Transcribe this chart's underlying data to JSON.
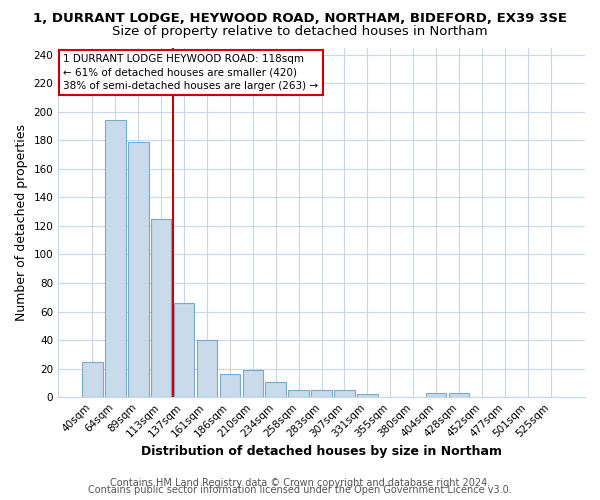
{
  "title": "1, DURRANT LODGE, HEYWOOD ROAD, NORTHAM, BIDEFORD, EX39 3SE",
  "subtitle": "Size of property relative to detached houses in Northam",
  "xlabel": "Distribution of detached houses by size in Northam",
  "ylabel": "Number of detached properties",
  "bar_labels": [
    "40sqm",
    "64sqm",
    "89sqm",
    "113sqm",
    "137sqm",
    "161sqm",
    "186sqm",
    "210sqm",
    "234sqm",
    "258sqm",
    "283sqm",
    "307sqm",
    "331sqm",
    "355sqm",
    "380sqm",
    "404sqm",
    "428sqm",
    "452sqm",
    "477sqm",
    "501sqm",
    "525sqm"
  ],
  "bar_values": [
    25,
    194,
    179,
    125,
    66,
    40,
    16,
    19,
    11,
    5,
    5,
    5,
    2,
    0,
    0,
    3,
    3,
    0,
    0,
    0,
    0
  ],
  "bar_color": "#c9daea",
  "bar_edge_color": "#7aaac8",
  "vline_x": 3.5,
  "vline_color": "#cc0000",
  "annotation_text": "1 DURRANT LODGE HEYWOOD ROAD: 118sqm\n← 61% of detached houses are smaller (420)\n38% of semi-detached houses are larger (263) →",
  "annotation_box_color": "#ffffff",
  "annotation_box_edge": "#cc0000",
  "ylim": [
    0,
    245
  ],
  "yticks": [
    0,
    20,
    40,
    60,
    80,
    100,
    120,
    140,
    160,
    180,
    200,
    220,
    240
  ],
  "footer1": "Contains HM Land Registry data © Crown copyright and database right 2024.",
  "footer2": "Contains public sector information licensed under the Open Government Licence v3.0.",
  "bg_color": "#ffffff",
  "plot_bg_color": "#ffffff",
  "grid_color": "#c8d8e8",
  "title_fontsize": 9.5,
  "subtitle_fontsize": 9.5,
  "tick_fontsize": 7.5,
  "label_fontsize": 9,
  "footer_fontsize": 7
}
